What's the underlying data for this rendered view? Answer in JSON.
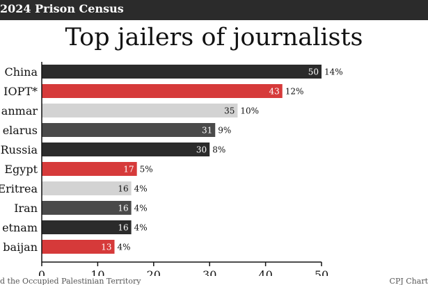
{
  "header": {
    "text": "2024 Prison Census"
  },
  "footer": {
    "note": "d the Occupied Palestinian Territory",
    "credit": "CPJ Chart"
  },
  "colors": {
    "black": "#2b2b2b",
    "red": "#d63a3a",
    "light": "#d3d3d3",
    "dark": "#4a4a4a"
  },
  "chart_data": {
    "type": "bar",
    "orientation": "horizontal",
    "title": "Top jailers of journalists",
    "categories": [
      "China",
      "IOPT*",
      "anmar",
      "elarus",
      "Russia",
      "Egypt",
      "Eritrea",
      "Iran",
      "etnam",
      "baijan"
    ],
    "values": [
      50,
      43,
      35,
      31,
      30,
      17,
      16,
      16,
      16,
      13
    ],
    "percentages": [
      "14%",
      "12%",
      "10%",
      "9%",
      "8%",
      "5%",
      "4%",
      "4%",
      "4%",
      "4%"
    ],
    "bar_colors": [
      "#2b2b2b",
      "#d63a3a",
      "#d3d3d3",
      "#4a4a4a",
      "#2b2b2b",
      "#d63a3a",
      "#d3d3d3",
      "#4a4a4a",
      "#2b2b2b",
      "#d63a3a"
    ],
    "xlim": [
      0,
      50
    ],
    "xticks": [
      0,
      10,
      20,
      30,
      40,
      50
    ],
    "grid": false
  }
}
